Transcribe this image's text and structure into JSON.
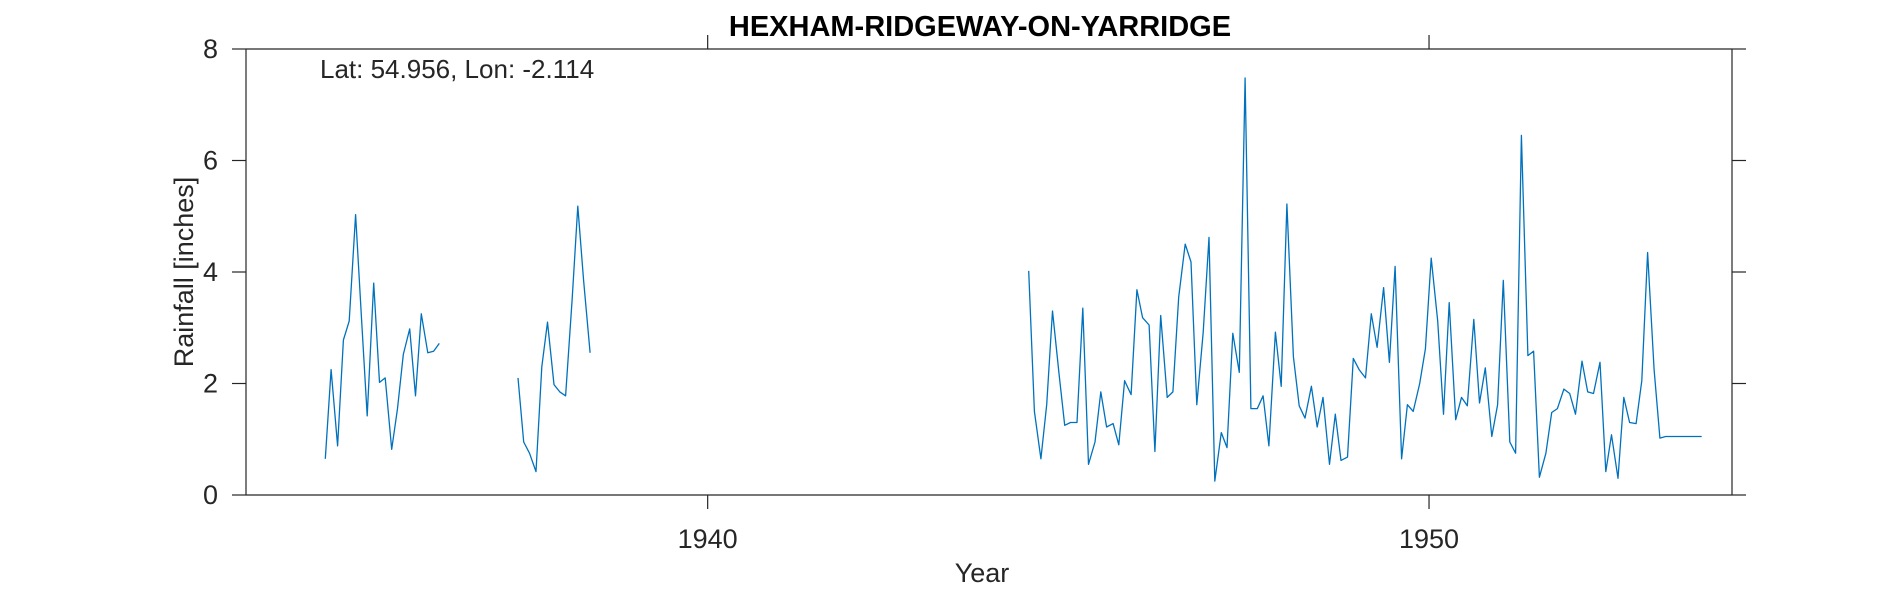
{
  "colors": {
    "series": "#0072BD",
    "axis": "#262626",
    "background": "#ffffff",
    "title": "#000000"
  },
  "chart_data": {
    "type": "line",
    "title": "HEXHAM-RIDGEWAY-ON-YARRIDGE",
    "annotation": "Lat: 54.956, Lon: -2.114",
    "xlabel": "Year",
    "ylabel": "Rainfall [inches]",
    "xlim": [
      1933.6,
      1954.2
    ],
    "ylim": [
      0,
      8
    ],
    "xticks": [
      1940,
      1950
    ],
    "xtick_labels": [
      "1940",
      "1950"
    ],
    "yticks": [
      0,
      2,
      4,
      6,
      8
    ],
    "ytick_labels": [
      "0",
      "2",
      "4",
      "6",
      "8"
    ],
    "grid": false,
    "legend": "none",
    "box": true,
    "segments": [
      {
        "x": [
          1934.7,
          1934.78,
          1934.87,
          1934.95,
          1935.03,
          1935.12,
          1935.2,
          1935.28,
          1935.37,
          1935.45,
          1935.53,
          1935.62,
          1935.7,
          1935.78,
          1935.87,
          1935.95,
          1936.03,
          1936.12,
          1936.2,
          1936.28
        ],
        "y": [
          0.65,
          2.25,
          0.88,
          2.78,
          3.12,
          5.03,
          3.2,
          1.42,
          3.8,
          2.02,
          2.1,
          0.82,
          1.55,
          2.52,
          2.98,
          1.78,
          3.25,
          2.55,
          2.58,
          2.72
        ]
      },
      {
        "x": [
          1937.37,
          1937.45,
          1937.53,
          1937.62,
          1937.7,
          1937.78,
          1937.87,
          1937.95,
          1938.03,
          1938.12,
          1938.2,
          1938.28,
          1938.37
        ],
        "y": [
          2.1,
          0.95,
          0.75,
          0.42,
          2.3,
          3.1,
          1.98,
          1.85,
          1.78,
          3.5,
          5.18,
          3.85,
          2.55
        ]
      },
      {
        "x": [
          1944.45,
          1944.53,
          1944.62,
          1944.7,
          1944.78,
          1944.87,
          1944.95,
          1945.03,
          1945.12,
          1945.2,
          1945.28,
          1945.37,
          1945.45,
          1945.53,
          1945.62,
          1945.7,
          1945.78,
          1945.87,
          1945.95,
          1946.03,
          1946.12,
          1946.2,
          1946.28,
          1946.37,
          1946.45,
          1946.53,
          1946.62,
          1946.7,
          1946.78,
          1946.87,
          1946.95,
          1947.03,
          1947.12,
          1947.2,
          1947.28,
          1947.37,
          1947.45,
          1947.53,
          1947.62,
          1947.7,
          1947.78,
          1947.87,
          1947.95,
          1948.03,
          1948.12,
          1948.2,
          1948.28,
          1948.37,
          1948.45,
          1948.53,
          1948.62,
          1948.7,
          1948.78,
          1948.87,
          1948.95,
          1949.03,
          1949.12,
          1949.2,
          1949.28,
          1949.37,
          1949.45,
          1949.53,
          1949.62,
          1949.7,
          1949.78,
          1949.87,
          1949.95,
          1950.03,
          1950.12,
          1950.2,
          1950.28,
          1950.37,
          1950.45,
          1950.53,
          1950.62,
          1950.7,
          1950.78,
          1950.87,
          1950.95,
          1951.03,
          1951.12,
          1951.2,
          1951.28,
          1951.37,
          1951.45,
          1951.53,
          1951.62,
          1951.7,
          1951.78,
          1951.87,
          1951.95,
          1952.03,
          1952.12,
          1952.2,
          1952.28,
          1952.37,
          1952.45,
          1952.53,
          1952.62,
          1952.7,
          1952.78,
          1952.87,
          1952.95,
          1953.03,
          1953.12,
          1953.2,
          1953.28,
          1953.37,
          1953.45,
          1953.53,
          1953.62,
          1953.7,
          1953.78
        ],
        "y": [
          4.02,
          1.5,
          0.65,
          1.62,
          3.3,
          2.18,
          1.25,
          1.3,
          1.3,
          3.35,
          0.55,
          0.95,
          1.85,
          1.22,
          1.28,
          0.9,
          2.05,
          1.8,
          3.68,
          3.18,
          3.05,
          0.78,
          3.22,
          1.75,
          1.85,
          3.55,
          4.5,
          4.18,
          1.62,
          2.92,
          4.62,
          0.25,
          1.12,
          0.85,
          2.9,
          2.2,
          7.48,
          1.55,
          1.55,
          1.78,
          0.88,
          2.92,
          1.95,
          5.22,
          2.48,
          1.6,
          1.38,
          1.95,
          1.22,
          1.75,
          0.55,
          1.45,
          0.62,
          0.68,
          2.45,
          2.25,
          2.1,
          3.25,
          2.65,
          3.72,
          2.38,
          4.1,
          0.65,
          1.62,
          1.5,
          2.0,
          2.62,
          4.25,
          3.12,
          1.45,
          3.45,
          1.35,
          1.75,
          1.6,
          3.15,
          1.65,
          2.28,
          1.05,
          1.62,
          3.85,
          0.95,
          0.75,
          6.45,
          2.5,
          2.58,
          0.32,
          0.75,
          1.48,
          1.55,
          1.9,
          1.82,
          1.45,
          2.4,
          1.85,
          1.82,
          2.38,
          0.42,
          1.08,
          0.3,
          1.75,
          1.3,
          1.28,
          2.05,
          4.35,
          2.25,
          1.02,
          1.05,
          1.05,
          1.05,
          1.05,
          1.05,
          1.05,
          1.05
        ]
      }
    ]
  }
}
